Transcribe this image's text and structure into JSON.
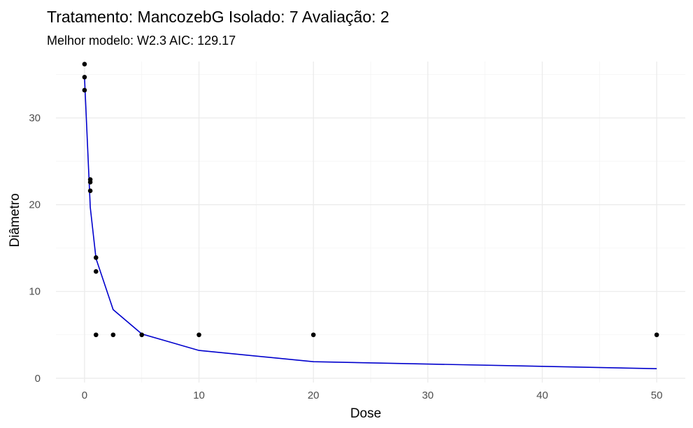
{
  "chart_data": {
    "type": "scatter",
    "title": "Tratamento: Mancozeb",
    "title_glyph": "G",
    "title_rest": " Isolado: 7 Avaliação: 2",
    "subtitle": "Melhor modelo: W2.3 AIC: 129.17",
    "xlabel": "Dose",
    "ylabel": "Diâmetro",
    "xlim": [
      -2.5,
      52.5
    ],
    "ylim": [
      -0.5,
      36.5
    ],
    "x_ticks": [
      0,
      10,
      20,
      30,
      40,
      50
    ],
    "x_tick_labels": [
      "0",
      "10",
      "20",
      "30",
      "40",
      "50"
    ],
    "y_ticks": [
      0,
      10,
      20,
      30
    ],
    "y_tick_labels": [
      "0",
      "10",
      "20",
      "30"
    ],
    "grid": true,
    "point_color": "#000000",
    "line_color": "#0000cd",
    "points": [
      {
        "x": 0,
        "y": 36.2
      },
      {
        "x": 0,
        "y": 34.7
      },
      {
        "x": 0,
        "y": 33.2
      },
      {
        "x": 0.5,
        "y": 22.9
      },
      {
        "x": 0.5,
        "y": 22.6
      },
      {
        "x": 0.5,
        "y": 21.6
      },
      {
        "x": 1,
        "y": 13.9
      },
      {
        "x": 1,
        "y": 12.3
      },
      {
        "x": 1,
        "y": 5.0
      },
      {
        "x": 2.5,
        "y": 5.0
      },
      {
        "x": 5,
        "y": 5.0
      },
      {
        "x": 10,
        "y": 5.0
      },
      {
        "x": 20,
        "y": 5.0
      },
      {
        "x": 50,
        "y": 5.0
      }
    ],
    "fit_line": {
      "x": [
        0,
        0.5,
        1,
        2.5,
        5,
        10,
        20,
        50
      ],
      "y": [
        34.6,
        19.7,
        13.8,
        7.9,
        5.1,
        3.2,
        1.9,
        1.1
      ]
    }
  }
}
